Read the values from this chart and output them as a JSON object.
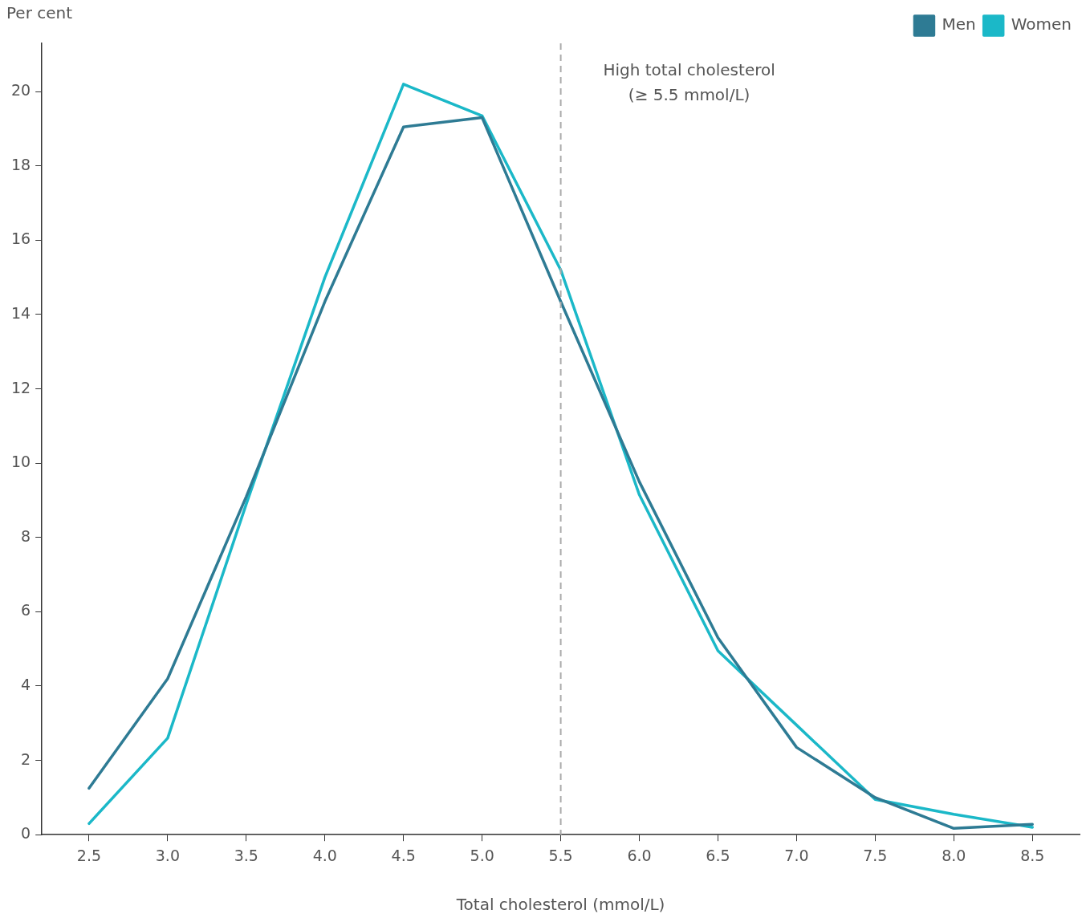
{
  "chart_data": {
    "type": "line",
    "xlabel": "Total cholesterol (mmol/L)",
    "ylabel": "Per cent",
    "x": [
      2.5,
      3.0,
      3.5,
      4.0,
      4.5,
      5.0,
      5.5,
      6.0,
      6.5,
      7.0,
      7.5,
      8.0,
      8.5
    ],
    "series": [
      {
        "name": "Men",
        "color": "#2e7b94",
        "values": [
          1.25,
          4.2,
          9.1,
          14.35,
          19.05,
          19.3,
          14.35,
          9.5,
          5.3,
          2.35,
          1.0,
          0.17,
          0.28
        ]
      },
      {
        "name": "Women",
        "color": "#1bb8c8",
        "values": [
          0.3,
          2.6,
          8.9,
          15.0,
          20.2,
          19.35,
          15.2,
          9.15,
          4.95,
          2.95,
          0.95,
          0.55,
          0.2
        ]
      }
    ],
    "xlim": [
      2.2,
      8.8
    ],
    "xticks": [
      2.5,
      {
        "value": 3,
        "label": "3.0"
      },
      3.5,
      {
        "value": 4,
        "label": "4.0"
      },
      4.5,
      {
        "value": 5,
        "label": "5.0"
      },
      5.5,
      {
        "value": 6,
        "label": "6.0"
      },
      6.5,
      {
        "value": 7,
        "label": "7.0"
      },
      7.5,
      {
        "value": 8,
        "label": "8.0"
      },
      8.5
    ],
    "ylim": [
      0,
      21.3
    ],
    "yticks": [
      0,
      2,
      4,
      6,
      8,
      10,
      12,
      14,
      16,
      18,
      20
    ],
    "ref_lines": [
      {
        "axis": "x",
        "value": 5.5,
        "label": "High total cholesterol\n(≥ 5.5 mmol/L)",
        "color": "#aaaaaa",
        "line_style": "dashed"
      }
    ],
    "grid": false,
    "legend": "top right",
    "marker": "none",
    "line_style": "solid"
  }
}
